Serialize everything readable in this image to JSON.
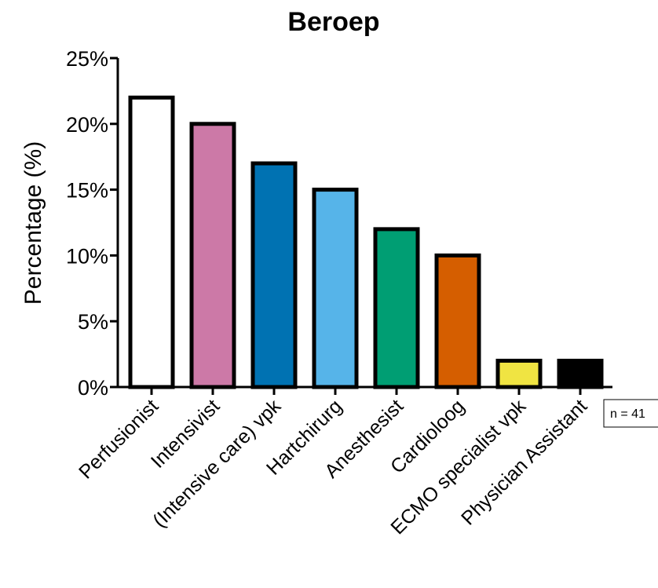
{
  "chart_data": {
    "type": "bar",
    "title": "Beroep",
    "xlabel": "",
    "ylabel": "Percentage (%)",
    "ylim": [
      0,
      25
    ],
    "yticks": [
      "0%",
      "5%",
      "10%",
      "15%",
      "20%",
      "25%"
    ],
    "categories": [
      "Perfusionist",
      "Intensivist",
      "(Intensive care) vpk",
      "Hartchirurg",
      "Anesthesist",
      "Cardioloog",
      "ECMO specialist vpk",
      "Physician Assistant"
    ],
    "values": [
      22,
      20,
      17,
      15,
      12,
      10,
      2,
      2
    ],
    "colors": [
      "#ffffff",
      "#cc79a7",
      "#0072b2",
      "#56b4e9",
      "#009e73",
      "#d55e00",
      "#f0e442",
      "#000000"
    ],
    "annotation": "n = 41",
    "grid": false,
    "legend": "none"
  }
}
